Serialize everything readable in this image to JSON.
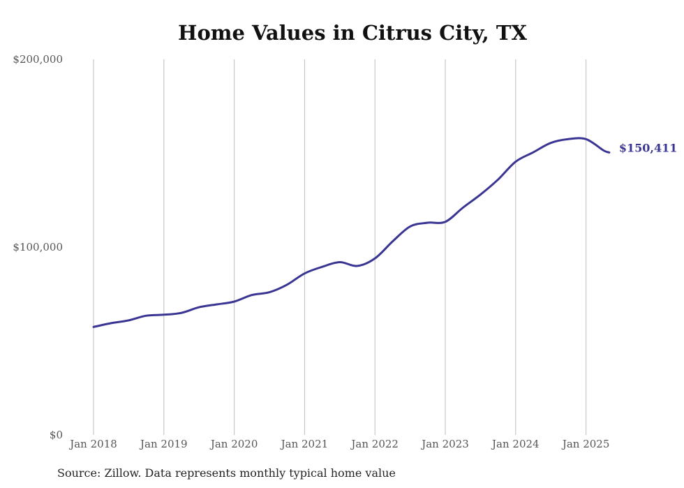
{
  "chart_data": {
    "type": "line",
    "title": "Home Values in Citrus City, TX",
    "source": "Source: Zillow. Data represents monthly typical home value",
    "ylim": [
      0,
      200000
    ],
    "y_ticks": [
      "$0",
      "$100,000",
      "$200,000"
    ],
    "x_ticks": [
      "Jan 2018",
      "Jan 2019",
      "Jan 2020",
      "Jan 2021",
      "Jan 2022",
      "Jan 2023",
      "Jan 2024",
      "Jan 2025"
    ],
    "grid": "vertical",
    "line_color": "#3a3592",
    "end_label": "$150,411",
    "series": [
      {
        "values": [
          [
            2018.0,
            57500
          ],
          [
            2018.25,
            59500
          ],
          [
            2018.5,
            61000
          ],
          [
            2018.75,
            63500
          ],
          [
            2019.0,
            64000
          ],
          [
            2019.25,
            65000
          ],
          [
            2019.5,
            68000
          ],
          [
            2019.75,
            69500
          ],
          [
            2020.0,
            71000
          ],
          [
            2020.25,
            74500
          ],
          [
            2020.5,
            76000
          ],
          [
            2020.75,
            80000
          ],
          [
            2021.0,
            86000
          ],
          [
            2021.25,
            89500
          ],
          [
            2021.5,
            92000
          ],
          [
            2021.75,
            90000
          ],
          [
            2022.0,
            94000
          ],
          [
            2022.25,
            103000
          ],
          [
            2022.5,
            111000
          ],
          [
            2022.75,
            113000
          ],
          [
            2023.0,
            113500
          ],
          [
            2023.25,
            121000
          ],
          [
            2023.5,
            128000
          ],
          [
            2023.75,
            136000
          ],
          [
            2024.0,
            145500
          ],
          [
            2024.25,
            150500
          ],
          [
            2024.5,
            155500
          ],
          [
            2024.75,
            157500
          ],
          [
            2025.0,
            157500
          ],
          [
            2025.25,
            151500
          ],
          [
            2025.33,
            150411
          ]
        ]
      }
    ]
  }
}
